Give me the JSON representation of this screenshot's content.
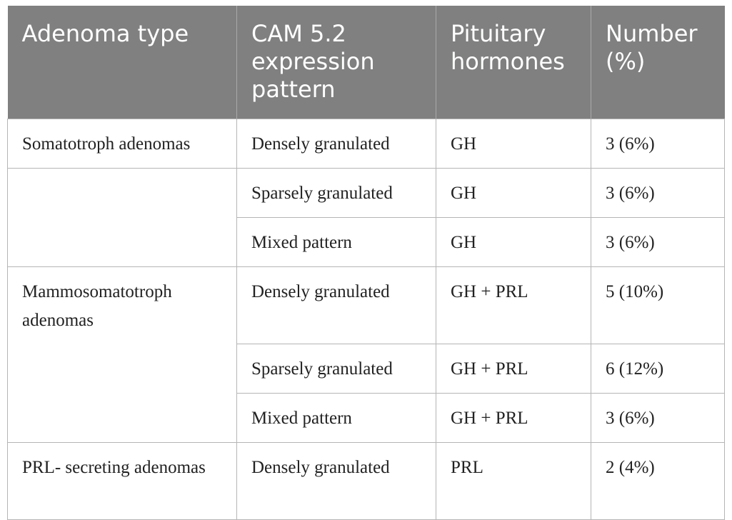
{
  "table": {
    "headers": {
      "adenoma_type": "Adenoma type",
      "cam_pattern": "CAM 5.2 expression pattern",
      "hormones": "Pituitary hormones",
      "number": "Number (%)"
    },
    "rows": [
      {
        "adenoma_type": "Somatotroph adenomas",
        "pattern": "Densely granulated",
        "hormones": "GH",
        "number": "3 (6%)"
      },
      {
        "adenoma_type": "",
        "pattern": "Sparsely granulated",
        "hormones": "GH",
        "number": "3 (6%)"
      },
      {
        "adenoma_type": "",
        "pattern": "Mixed pattern",
        "hormones": "GH",
        "number": "3 (6%)"
      },
      {
        "adenoma_type": "Mammosomatotroph adenomas",
        "pattern": "Densely granulated",
        "hormones": "GH + PRL",
        "number": "5 (10%)"
      },
      {
        "adenoma_type": "",
        "pattern": "Sparsely granulated",
        "hormones": "GH + PRL",
        "number": "6 (12%)"
      },
      {
        "adenoma_type": "",
        "pattern": "Mixed pattern",
        "hormones": "GH + PRL",
        "number": "3 (6%)"
      },
      {
        "adenoma_type": "PRL- secreting adenomas",
        "pattern": "Densely granulated",
        "hormones": "PRL",
        "number": "2 (4%)"
      }
    ]
  }
}
